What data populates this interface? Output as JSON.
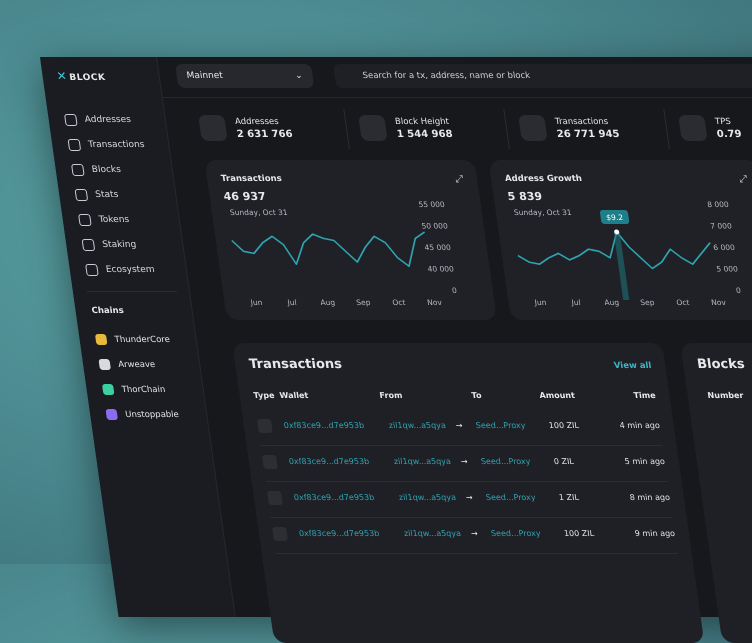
{
  "brand": "BLOCK",
  "network": "Mainnet",
  "search_placeholder": "Search for a tx, address, name  or block",
  "nav": [
    "Addresses",
    "Transactions",
    "Blocks",
    "Stats",
    "Tokens",
    "Staking",
    "Ecosystem"
  ],
  "chains_title": "Chains",
  "chains": [
    "ThunderCore",
    "Arweave",
    "ThorChain",
    "Unstoppable"
  ],
  "stats": [
    {
      "label": "Addresses",
      "value": "2 631 766"
    },
    {
      "label": "Block Height",
      "value": "1 544 968"
    },
    {
      "label": "Transactions",
      "value": "26 771 945"
    },
    {
      "label": "TPS",
      "value": "0.79"
    }
  ],
  "charts": [
    {
      "type": "line",
      "title": "Transactions",
      "value": "46 937",
      "date": "Sunday, Oct 31",
      "x_labels": [
        "Jun",
        "Jul",
        "Aug",
        "Sep",
        "Oct",
        "Nov"
      ],
      "y_labels": [
        "55 000",
        "50 000",
        "45 000",
        "40 000",
        "0"
      ],
      "ylim": [
        35000,
        55000
      ],
      "color": "#2fa4b2",
      "values": [
        46500,
        44000,
        43500,
        46000,
        47500,
        45500,
        41000,
        46000,
        48000,
        47000,
        46500,
        44000,
        41500,
        45000,
        47500,
        46000,
        42500,
        40500,
        47000,
        48500
      ]
    },
    {
      "type": "line",
      "title": "Address Growth",
      "value": "5 839",
      "date": "Sunday, Oct 31",
      "x_labels": [
        "Jun",
        "Jul",
        "Aug",
        "Sep",
        "Oct",
        "Nov"
      ],
      "y_labels": [
        "8 000",
        "7 000",
        "6 000",
        "5 000",
        "0"
      ],
      "ylim": [
        4000,
        8000
      ],
      "color": "#2fa4b2",
      "annotation": "$9.2",
      "values": [
        5600,
        5300,
        5200,
        5500,
        5700,
        5400,
        5600,
        5900,
        5800,
        5500,
        6700,
        6000,
        5500,
        5000,
        5300,
        5900,
        5500,
        5200,
        5700,
        6200
      ]
    }
  ],
  "transactions": {
    "title": "Transactions",
    "view_all": "View all",
    "headers": [
      "Type",
      "Wallet",
      "From",
      "To",
      "Amount",
      "Time"
    ],
    "rows": [
      [
        "0xf83ce9...d7e953b",
        "zil1qw...a5qya",
        "Seed...Proxy",
        "100 ZIL",
        "4 min ago"
      ],
      [
        "0xf83ce9...d7e953b",
        "zil1qw...a5qya",
        "Seed...Proxy",
        "0 ZIL",
        "5 min ago"
      ],
      [
        "0xf83ce9...d7e953b",
        "zil1qw...a5qya",
        "Seed...Proxy",
        "1 ZIL",
        "8 min ago"
      ],
      [
        "0xf83ce9...d7e953b",
        "zil1qw...a5qya",
        "Seed...Proxy",
        "100 ZIL",
        "9 min ago"
      ]
    ]
  },
  "blocks": {
    "title": "Blocks",
    "header": "Number"
  }
}
